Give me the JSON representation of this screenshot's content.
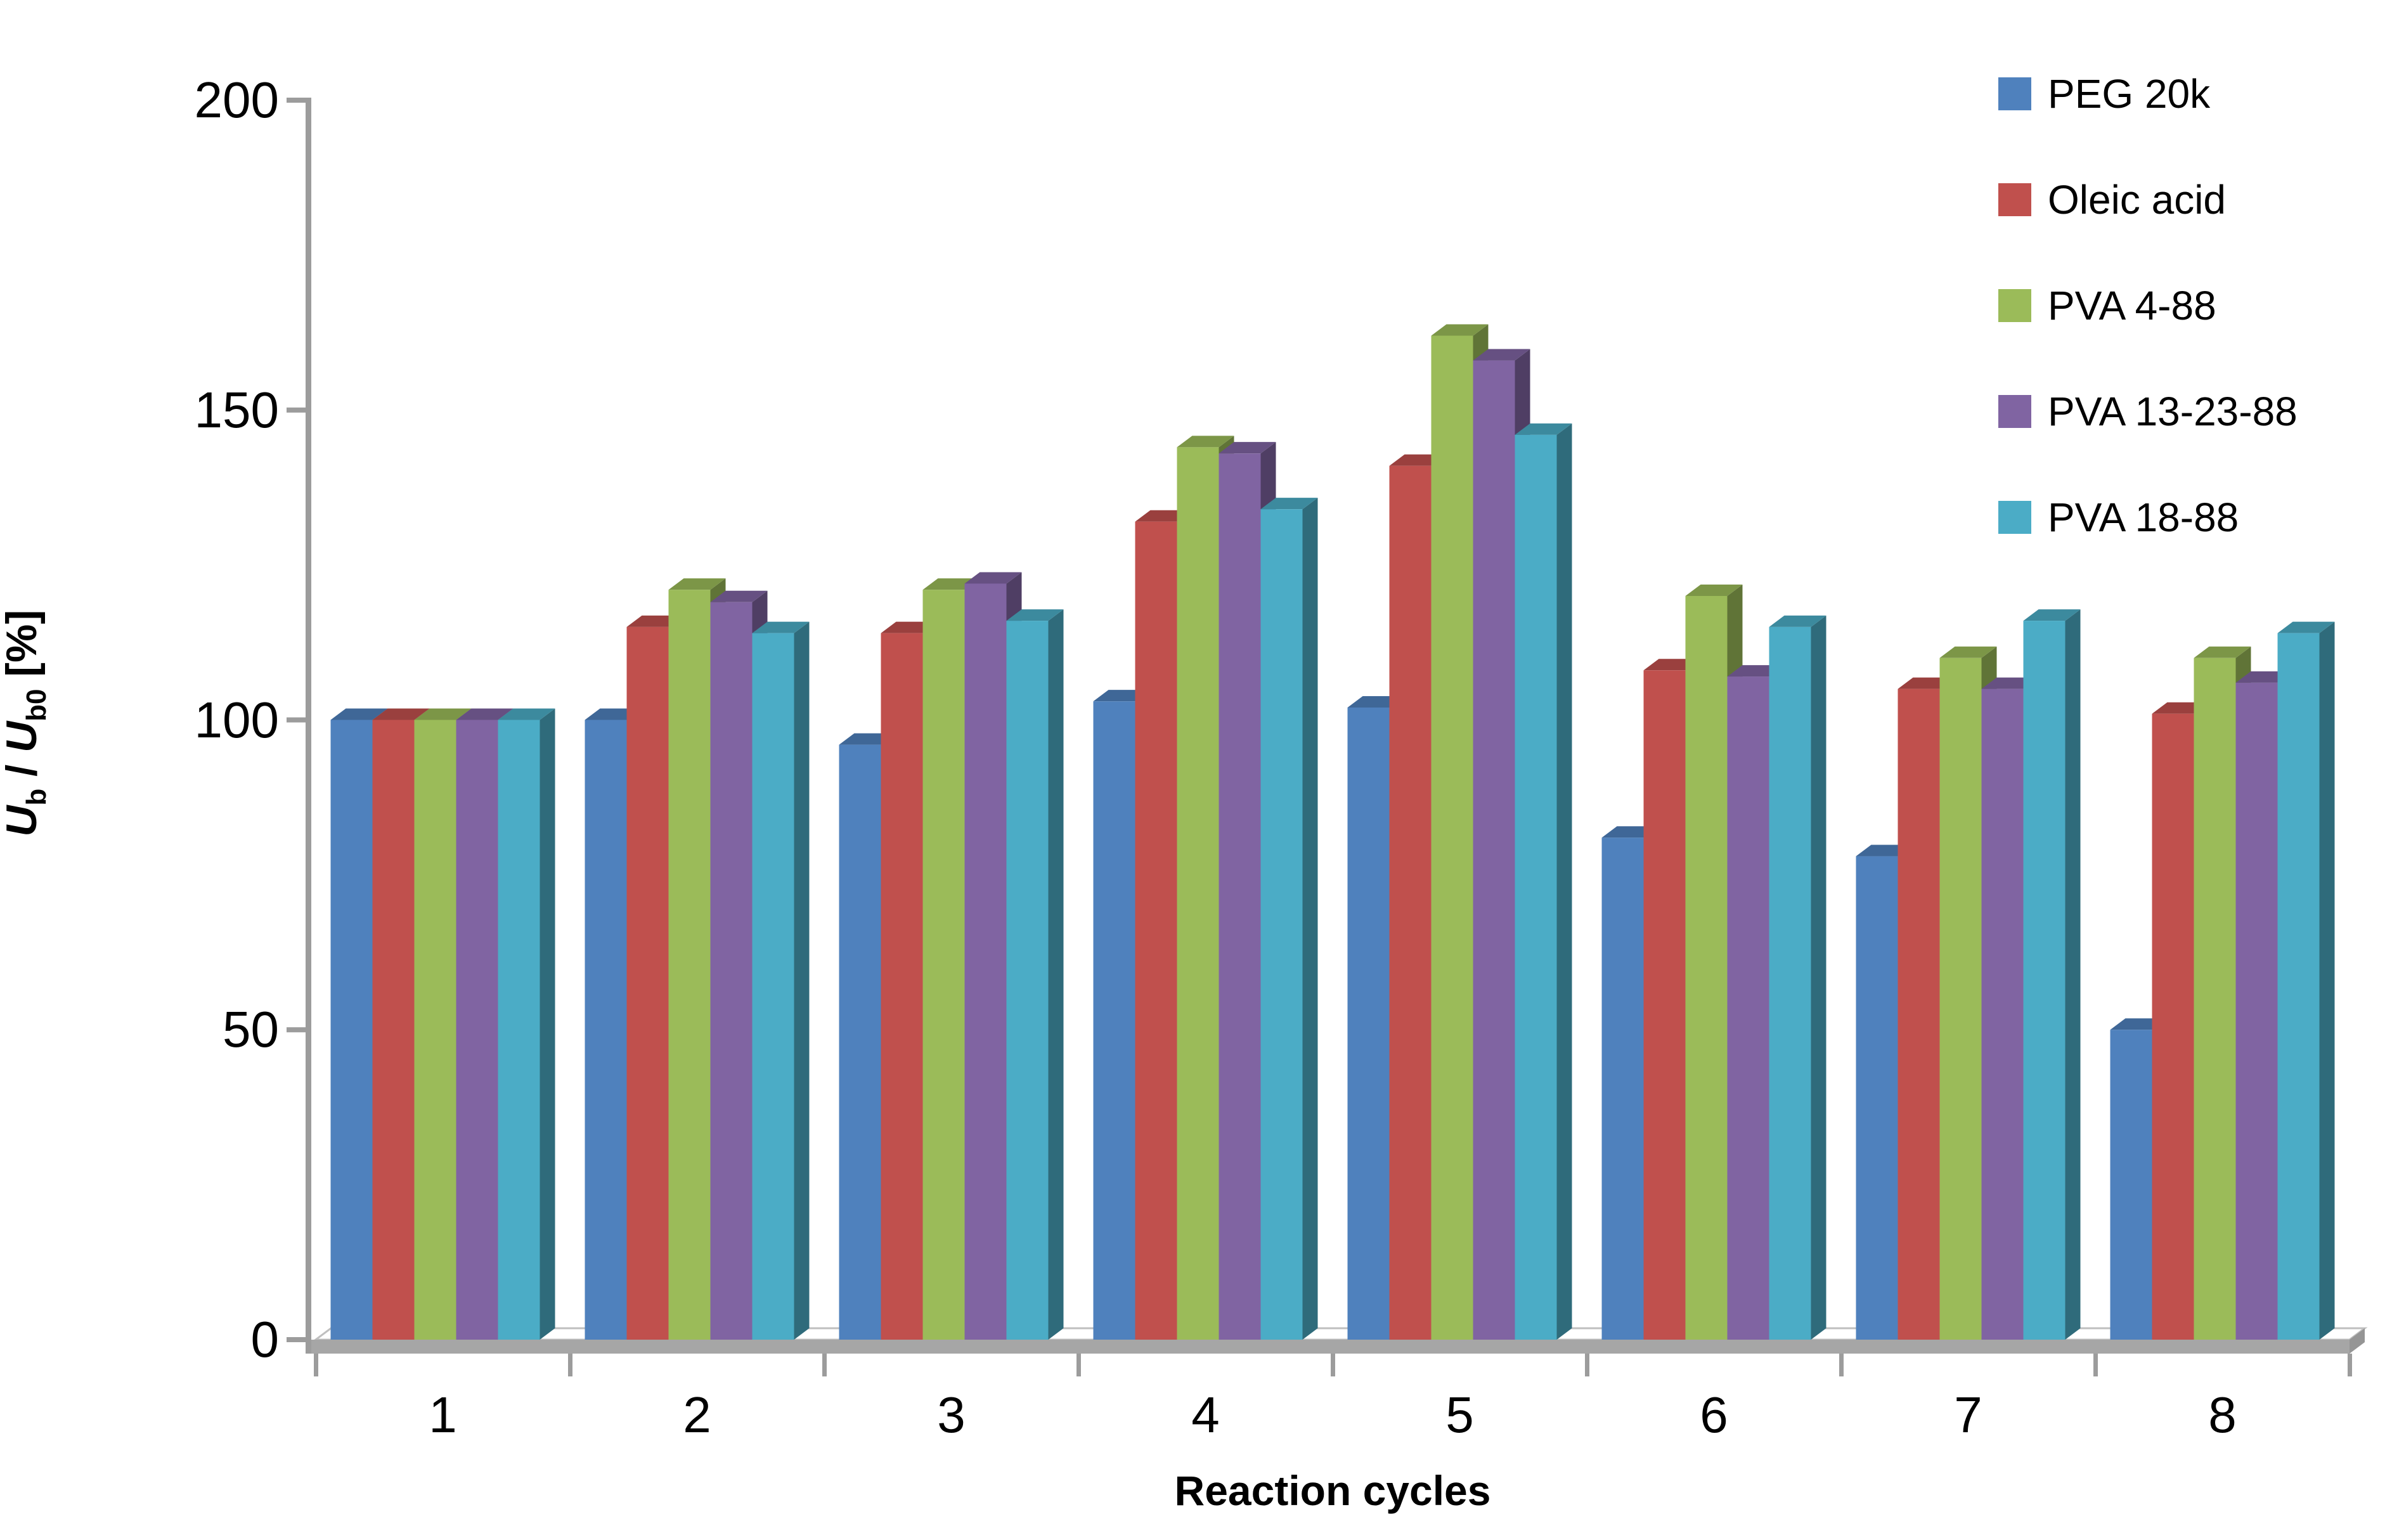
{
  "chart_data": {
    "type": "bar",
    "style": "3d-clustered-column",
    "title": "",
    "xlabel": "Reaction cycles",
    "ylabel": "Ub / Ub0 [%]",
    "ylabel_parts": {
      "var1": "U",
      "sub1": "b",
      "mid": " / ",
      "var2": "U",
      "sub2": "b0",
      "unit": " [%]"
    },
    "categories": [
      "1",
      "2",
      "3",
      "4",
      "5",
      "6",
      "7",
      "8"
    ],
    "yticks": [
      "0",
      "50",
      "100",
      "150",
      "200"
    ],
    "ylim": [
      0,
      200
    ],
    "grid": false,
    "legend_position": "top-right",
    "axis_color": "#9C9C9C",
    "floor_front_color": "#A6A6A6",
    "floor_edge_color": "#BFBFBF",
    "series": [
      {
        "name": "PEG 20k",
        "color": "#4F81BD",
        "values": [
          100,
          100,
          96,
          103,
          102,
          81,
          78,
          50
        ]
      },
      {
        "name": "Oleic acid",
        "color": "#C0504D",
        "values": [
          100,
          115,
          114,
          132,
          141,
          108,
          105,
          101
        ]
      },
      {
        "name": "PVA 4-88",
        "color": "#9BBB59",
        "values": [
          100,
          121,
          121,
          144,
          162,
          120,
          110,
          110
        ]
      },
      {
        "name": "PVA 13-23-88",
        "color": "#8064A2",
        "values": [
          100,
          119,
          122,
          143,
          158,
          107,
          105,
          106
        ]
      },
      {
        "name": "PVA 18-88",
        "color": "#4BACC6",
        "values": [
          100,
          114,
          116,
          134,
          146,
          115,
          116,
          114
        ]
      }
    ]
  }
}
